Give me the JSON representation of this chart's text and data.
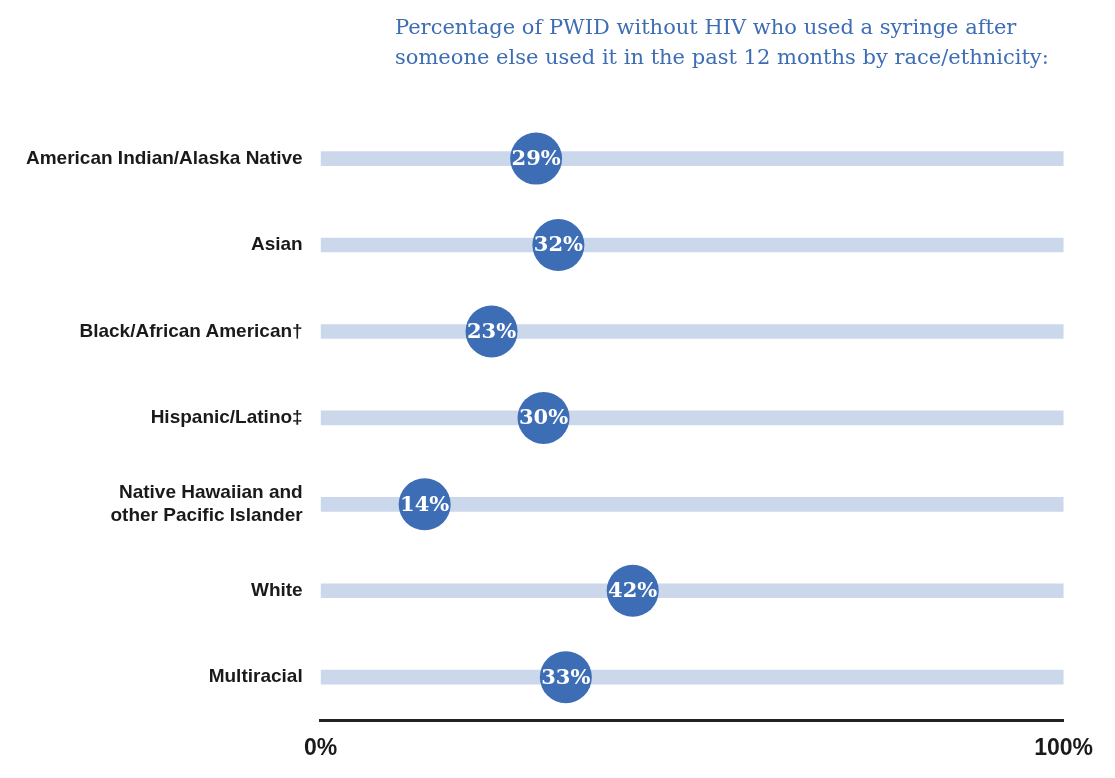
{
  "chart_data": {
    "type": "scatter",
    "orientation": "horizontal",
    "title": "Percentage of PWID without HIV who used a syringe after someone else used it in the past 12 months by race/ethnicity:",
    "categories": [
      "American Indian/Alaska Native",
      "Asian",
      "Black/African American†",
      "Hispanic/Latino‡",
      "Native Hawaiian and\nother Pacific Islander",
      "White",
      "Multiracial"
    ],
    "series": [
      {
        "type": "bar",
        "color": "#cbd8eb",
        "values": [
          100,
          100,
          100,
          100,
          100,
          100,
          100
        ]
      },
      {
        "color": "#3d6db5",
        "values": [
          29,
          32,
          23,
          30,
          14,
          42,
          33
        ]
      }
    ],
    "value_labels": [
      "29%",
      "32%",
      "23%",
      "30%",
      "14%",
      "42%",
      "33%"
    ],
    "xlim": [
      0,
      100
    ],
    "xticks": [
      {
        "value": 0,
        "label": "0%"
      },
      {
        "value": 100,
        "label": "100%"
      }
    ],
    "grid": false,
    "legend": false,
    "marker": "circle"
  }
}
